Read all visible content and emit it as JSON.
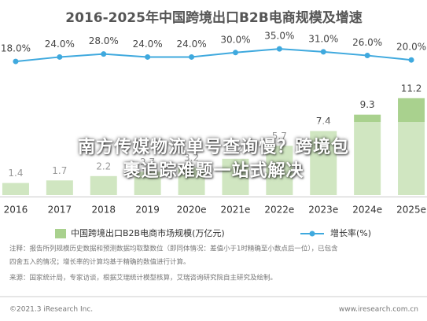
{
  "chart_data": {
    "type": "bar_line",
    "title": "2016-2025年中国跨境出口B2B电商规模及增速",
    "categories": [
      "2016",
      "2017",
      "2018",
      "2019",
      "2020e",
      "2021e",
      "2022e",
      "2023e",
      "2024e",
      "2025e"
    ],
    "series": [
      {
        "name": "中国跨境出口B2B电商市场规模(万亿元)",
        "color": "#a9d18e",
        "type": "bar",
        "values": [
          1.4,
          1.7,
          2.2,
          2.7,
          3.2,
          4.2,
          5.7,
          7.4,
          9.3,
          11.2
        ]
      },
      {
        "name": "增长率(%)",
        "color": "#3fa9de",
        "type": "line",
        "axis": "y2",
        "values": [
          18.0,
          24.0,
          28.0,
          24.0,
          24.0,
          30.0,
          35.0,
          31.0,
          26.0,
          20.0
        ],
        "value_labels": [
          "18.0%",
          "24.0%",
          "28.0%",
          "24.0%",
          "24.0%",
          "30.0%",
          "35.0%",
          "31.0%",
          "26.0%",
          "20.0%"
        ]
      }
    ],
    "ylim": [
      0,
      20
    ],
    "y2lim": [
      0,
      100
    ]
  },
  "overlay": [
    "南方传媒物流单号查询慢？跨境包",
    "裹追踪难题一站式解决"
  ],
  "notes": [
    "注释：报告所列规模历史数据和预测数据均取整数位（即同体情况：差值小于1时精确至小数点后一位），已包含",
    "四舍五入的情况；增长率的计算均基于精确的数值进行计算。",
    "来源：国家统计局，专家访谈，根据艾瑞统计模型核算，艾瑞咨询研究院自主研究及绘制。"
  ],
  "footer": {
    "left": "©2021.3 iResearch Inc.",
    "right": "www.iresearch.com.cn"
  }
}
